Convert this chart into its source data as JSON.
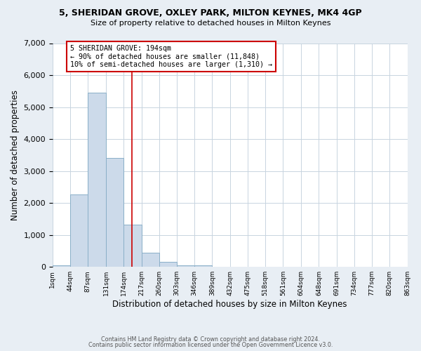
{
  "title1": "5, SHERIDAN GROVE, OXLEY PARK, MILTON KEYNES, MK4 4GP",
  "title2": "Size of property relative to detached houses in Milton Keynes",
  "xlabel": "Distribution of detached houses by size in Milton Keynes",
  "ylabel": "Number of detached properties",
  "bin_edges": [
    1,
    44,
    87,
    131,
    174,
    217,
    260,
    303,
    346,
    389,
    432,
    475,
    518,
    561,
    604,
    648,
    691,
    734,
    777,
    820,
    863
  ],
  "bin_labels": [
    "1sqm",
    "44sqm",
    "87sqm",
    "131sqm",
    "174sqm",
    "217sqm",
    "260sqm",
    "303sqm",
    "346sqm",
    "389sqm",
    "432sqm",
    "475sqm",
    "518sqm",
    "561sqm",
    "604sqm",
    "648sqm",
    "691sqm",
    "734sqm",
    "777sqm",
    "820sqm",
    "863sqm"
  ],
  "counts": [
    55,
    2270,
    5450,
    3400,
    1320,
    440,
    155,
    50,
    50,
    0,
    0,
    0,
    0,
    0,
    0,
    0,
    0,
    0,
    0,
    0
  ],
  "bar_color": "#ccdaea",
  "bar_edge_color": "#8aafc8",
  "vline_x": 194,
  "vline_color": "#cc0000",
  "annotation_line1": "5 SHERIDAN GROVE: 194sqm",
  "annotation_line2": "← 90% of detached houses are smaller (11,848)",
  "annotation_line3": "10% of semi-detached houses are larger (1,310) →",
  "annotation_box_color": "#ffffff",
  "annotation_box_edge_color": "#cc0000",
  "ylim": [
    0,
    7000
  ],
  "yticks": [
    0,
    1000,
    2000,
    3000,
    4000,
    5000,
    6000,
    7000
  ],
  "footer1": "Contains HM Land Registry data © Crown copyright and database right 2024.",
  "footer2": "Contains public sector information licensed under the Open Government Licence v3.0.",
  "bg_color": "#e8eef4",
  "plot_bg_color": "#ffffff",
  "grid_color": "#c8d4e0"
}
